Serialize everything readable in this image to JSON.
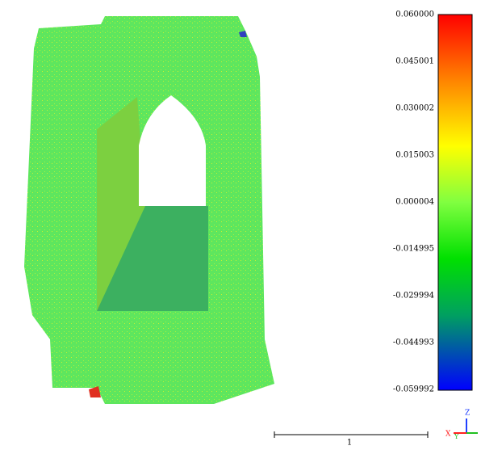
{
  "color_scale": {
    "ticks": [
      "0.060000",
      "0.045001",
      "0.030002",
      "0.015003",
      "0.000004",
      "-0.014995",
      "-0.029994",
      "-0.044993",
      "-0.059992"
    ]
  },
  "scale_bar": {
    "label": "1"
  },
  "axes": {
    "z": "Z",
    "x": "X",
    "y": "Y"
  }
}
